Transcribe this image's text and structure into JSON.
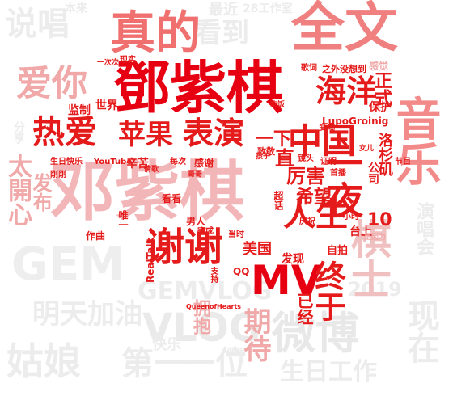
{
  "words": [
    {
      "text": "邓紫棋",
      "color": "#f3b6b8"
    },
    {
      "text": "鄧紫棋",
      "color": "#e60012"
    },
    {
      "text": "全文",
      "color": "#f08080"
    },
    {
      "text": "真的",
      "color": "#f07070"
    },
    {
      "text": "音乐",
      "color": "#f28a8a"
    },
    {
      "text": "中国",
      "color": "#e51a1a"
    },
    {
      "text": "海洋",
      "color": "#e51a1a"
    },
    {
      "text": "苹果",
      "color": "#e51a1a"
    },
    {
      "text": "表演",
      "color": "#e51a1a"
    },
    {
      "text": "热爱",
      "color": "#e51a1a"
    },
    {
      "text": "一夜",
      "color": "#e51a1a"
    },
    {
      "text": "谢谢",
      "color": "#e51a1a"
    },
    {
      "text": "人生",
      "color": "#e51a1a"
    },
    {
      "text": "MV",
      "color": "#e60012"
    },
    {
      "text": "爱你",
      "color": "#f0a8a8"
    },
    {
      "text": "说唱",
      "color": "#ececec"
    },
    {
      "text": "看到",
      "color": "#ececec"
    },
    {
      "text": "棋士",
      "color": "#f0c0c0"
    },
    {
      "text": "微博",
      "color": "#e8e8e8"
    },
    {
      "text": "GEM",
      "color": "#ececec"
    },
    {
      "text": "VLOG",
      "color": "#e8e8e8"
    },
    {
      "text": "GEMVLOG",
      "color": "#ececec"
    },
    {
      "text": "姑娘",
      "color": "#ececec"
    },
    {
      "text": "第一",
      "color": "#ececec"
    },
    {
      "text": "一次",
      "color": "#ececec"
    },
    {
      "text": "明天加油",
      "color": "#ececec"
    },
    {
      "text": "生日工作",
      "color": "#ececec"
    },
    {
      "text": "现在",
      "color": "#ececec"
    },
    {
      "text": "2019",
      "color": "#ececec"
    },
    {
      "text": "太開心",
      "color": "#f0a8a8"
    },
    {
      "text": "发布",
      "color": "#f0a8a8"
    },
    {
      "text": "正式",
      "color": "#e51a1a"
    },
    {
      "text": "厉害",
      "color": "#e51a1a"
    },
    {
      "text": "希望",
      "color": "#e51a1a"
    },
    {
      "text": "美国",
      "color": "#e51a1a"
    },
    {
      "text": "终于",
      "color": "#e51a1a"
    },
    {
      "text": "期待",
      "color": "#f0a8a8"
    },
    {
      "text": "拥抱",
      "color": "#f0a8a8"
    },
    {
      "text": "已经",
      "color": "#e51a1a"
    },
    {
      "text": "一下",
      "color": "#e51a1a"
    },
    {
      "text": "直",
      "color": "#e51a1a"
    },
    {
      "text": "10",
      "color": "#e51a1a"
    },
    {
      "text": "洛杉矶",
      "color": "#e51a1a"
    },
    {
      "text": "公司",
      "color": "#e51a1a"
    },
    {
      "text": "LupoGroinig",
      "color": "#e51a1a"
    },
    {
      "text": "保护",
      "color": "#e51a1a"
    },
    {
      "text": "监制",
      "color": "#e51a1a"
    },
    {
      "text": "世界",
      "color": "#e51a1a"
    },
    {
      "text": "辛苦",
      "color": "#e51a1a"
    },
    {
      "text": "发现",
      "color": "#e51a1a"
    },
    {
      "text": "自拍",
      "color": "#e51a1a"
    },
    {
      "text": "台上",
      "color": "#e51a1a"
    },
    {
      "text": "感谢",
      "color": "#e51a1a"
    },
    {
      "text": "男人",
      "color": "#e51a1a"
    },
    {
      "text": "看看",
      "color": "#e51a1a"
    },
    {
      "text": "作曲",
      "color": "#e51a1a"
    },
    {
      "text": "唯一",
      "color": "#e51a1a"
    },
    {
      "text": "RealTalk",
      "color": "#e51a1a"
    },
    {
      "text": "QQ",
      "color": "#e51a1a"
    },
    {
      "text": "演唱会",
      "color": "#ececec"
    },
    {
      "text": "快乐",
      "color": "#ececec"
    },
    {
      "text": "一位",
      "color": "#ececec"
    },
    {
      "text": "歌词",
      "color": "#e51a1a"
    },
    {
      "text": "之外没想到",
      "color": "#e51a1a"
    },
    {
      "text": "感觉",
      "color": "#f0a8a8"
    },
    {
      "text": "YouTube",
      "color": "#e51a1a"
    },
    {
      "text": "生日快乐",
      "color": "#e51a1a"
    },
    {
      "text": "刚刚",
      "color": "#e51a1a"
    },
    {
      "text": "每次",
      "color": "#e51a1a"
    },
    {
      "text": "致敬",
      "color": "#e51a1a"
    },
    {
      "text": "证明",
      "color": "#e51a1a"
    },
    {
      "text": "超话",
      "color": "#e51a1a"
    },
    {
      "text": "首播",
      "color": "#e51a1a"
    },
    {
      "text": "小时",
      "color": "#e51a1a"
    },
    {
      "text": "当时",
      "color": "#e51a1a"
    },
    {
      "text": "庆祝",
      "color": "#e51a1a"
    },
    {
      "text": "完成",
      "color": "#e51a1a"
    },
    {
      "text": "支持",
      "color": "#e51a1a"
    },
    {
      "text": "QueenofHearts",
      "color": "#e51a1a"
    },
    {
      "text": "抱歉",
      "color": "#e51a1a"
    },
    {
      "text": "变成",
      "color": "#e51a1a"
    },
    {
      "text": "吃饭",
      "color": "#e51a1a"
    },
    {
      "text": "镜头",
      "color": "#e51a1a"
    },
    {
      "text": "现实",
      "color": "#e51a1a"
    },
    {
      "text": "一次次",
      "color": "#e51a1a"
    },
    {
      "text": "最近",
      "color": "#ececec"
    },
    {
      "text": "28工作室",
      "color": "#ececec"
    },
    {
      "text": "本来",
      "color": "#ececec"
    },
    {
      "text": "是因为",
      "color": "#f0a8a8"
    },
    {
      "text": "节目",
      "color": "#e51a1a"
    },
    {
      "text": "女儿",
      "color": "#e51a1a"
    },
    {
      "text": "孩子",
      "color": "#e51a1a"
    },
    {
      "text": "哥哥",
      "color": "#e51a1a"
    },
    {
      "text": "情歌",
      "color": "#e51a1a"
    },
    {
      "text": "分享",
      "color": "#ececec"
    },
    {
      "text": "使用",
      "color": "#ececec"
    }
  ]
}
